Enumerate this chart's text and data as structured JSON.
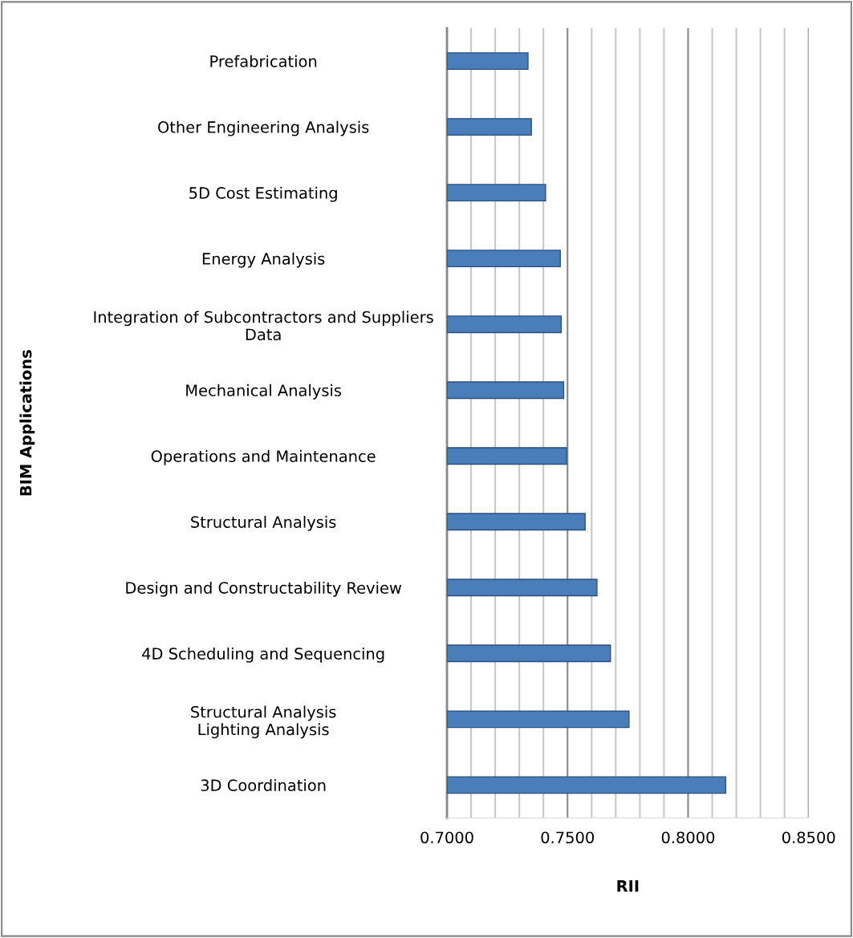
{
  "chart_data": {
    "type": "bar",
    "orientation": "horizontal",
    "categories": [
      "Prefabrication",
      "Other Engineering Analysis",
      "5D Cost Estimating",
      "Energy Analysis",
      "Integration of Subcontractors and Suppliers\nData",
      "Mechanical Analysis",
      "Operations and Maintenance",
      "Structural Analysis",
      "Design and Constructability Review",
      "4D Scheduling and Sequencing",
      "Structural Analysis\nLighting Analysis",
      "3D Coordination"
    ],
    "values": [
      0.7336,
      0.735,
      0.7409,
      0.747,
      0.7474,
      0.7484,
      0.7496,
      0.7573,
      0.7622,
      0.7678,
      0.7755,
      0.8156
    ],
    "color": "#4a7ebb",
    "xlabel": "RII",
    "ylabel": "BIM Applications",
    "xlim": [
      0.7,
      0.85
    ],
    "xticks": [
      {
        "value": 0.7,
        "label": "0.7000"
      },
      {
        "value": 0.71,
        "label": null
      },
      {
        "value": 0.72,
        "label": null
      },
      {
        "value": 0.73,
        "label": null
      },
      {
        "value": 0.74,
        "label": null
      },
      {
        "value": 0.75,
        "label": "0.7500"
      },
      {
        "value": 0.76,
        "label": null
      },
      {
        "value": 0.77,
        "label": null
      },
      {
        "value": 0.78,
        "label": null
      },
      {
        "value": 0.79,
        "label": null
      },
      {
        "value": 0.8,
        "label": "0.8000"
      },
      {
        "value": 0.81,
        "label": null
      },
      {
        "value": 0.82,
        "label": null
      },
      {
        "value": 0.83,
        "label": null
      },
      {
        "value": 0.84,
        "label": null
      },
      {
        "value": 0.85,
        "label": "0.8500"
      }
    ],
    "grid": "x"
  }
}
